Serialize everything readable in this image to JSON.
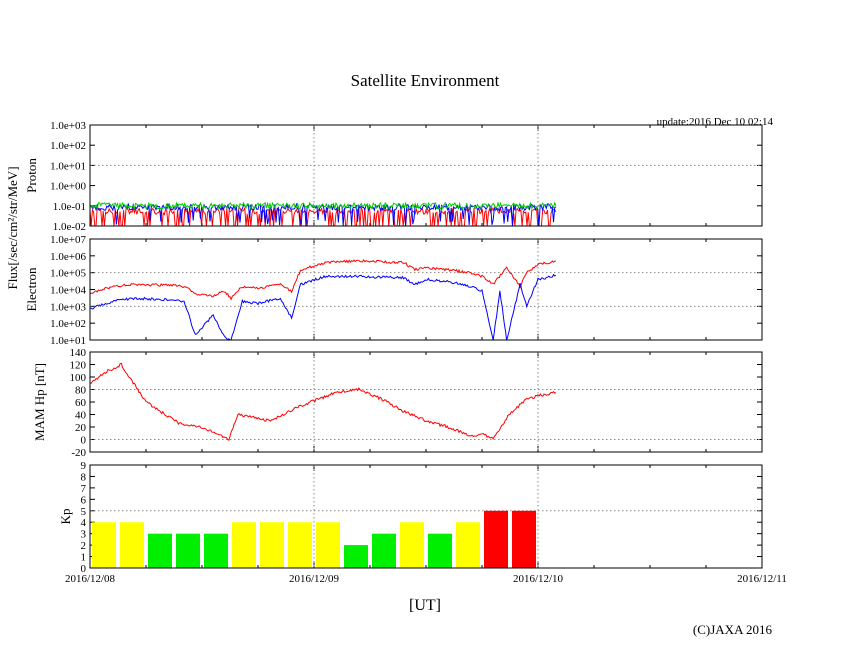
{
  "title": "Satellite Environment",
  "update": "update:2016 Dec 10 02:14",
  "copyright": "(C)JAXA 2016",
  "flux_label": "Flux[/sec/cm²/str/MeV]",
  "x_axis": {
    "label": "[UT]",
    "ticks": [
      "2016/12/08",
      "2016/12/09",
      "2016/12/10",
      "2016/12/11"
    ]
  },
  "chart_data": [
    {
      "type": "line",
      "ylabel": "Proton",
      "yscale": "log",
      "ylim": [
        0.01,
        1000
      ],
      "yticks": [
        "1.0e-02",
        "1.0e-01",
        "1.0e+00",
        "1.0e+01",
        "1.0e+02",
        "1.0e+03"
      ],
      "grid": "dotted, at day boundaries and 1.0e+01",
      "x_unit": "days since 2016/12/08 00:00 UT",
      "series": [
        {
          "color": "#ff0000",
          "x": [
            0,
            0.3,
            0.6,
            0.9,
            1.2,
            1.5,
            1.8,
            2.08
          ],
          "values": [
            0.06,
            0.05,
            0.06,
            0.05,
            0.06,
            0.05,
            0.06,
            0.05
          ]
        },
        {
          "color": "#0000ff",
          "x": [
            0,
            0.3,
            0.6,
            0.9,
            1.2,
            1.5,
            1.8,
            2.08
          ],
          "values": [
            0.08,
            0.09,
            0.08,
            0.09,
            0.08,
            0.09,
            0.08,
            0.09
          ]
        },
        {
          "color": "#00cc00",
          "x": [
            0,
            0.3,
            0.6,
            0.9,
            1.2,
            1.5,
            1.8,
            2.08
          ],
          "values": [
            0.1,
            0.1,
            0.1,
            0.1,
            0.1,
            0.1,
            0.1,
            0.1
          ]
        }
      ]
    },
    {
      "type": "line",
      "ylabel": "Electron",
      "yscale": "log",
      "ylim": [
        10,
        10000000
      ],
      "yticks": [
        "1.0e+01",
        "1.0e+02",
        "1.0e+03",
        "1.0e+04",
        "1.0e+05",
        "1.0e+06",
        "1.0e+07"
      ],
      "series": [
        {
          "color": "#ff0000",
          "x": [
            0,
            0.1,
            0.2,
            0.35,
            0.42,
            0.48,
            0.55,
            0.6,
            0.63,
            0.68,
            0.75,
            0.85,
            0.9,
            0.94,
            1.05,
            1.2,
            1.4,
            1.45,
            1.5,
            1.6,
            1.7,
            1.75,
            1.8,
            1.86,
            1.92,
            1.95,
            2.0,
            2.08
          ],
          "values": [
            6000,
            15000,
            20000,
            18000,
            15000,
            5000,
            4000,
            8000,
            3000,
            15000,
            12000,
            20000,
            8000,
            150000,
            400000,
            500000,
            400000,
            150000,
            200000,
            150000,
            100000,
            60000,
            20000,
            200000,
            15000,
            100000,
            300000,
            500000
          ]
        },
        {
          "color": "#0000ff",
          "x": [
            0,
            0.1,
            0.2,
            0.35,
            0.42,
            0.47,
            0.55,
            0.6,
            0.63,
            0.68,
            0.75,
            0.85,
            0.9,
            0.94,
            1.05,
            1.2,
            1.4,
            1.45,
            1.5,
            1.6,
            1.7,
            1.75,
            1.8,
            1.83,
            1.86,
            1.92,
            1.95,
            2.0,
            2.08
          ],
          "values": [
            700,
            2000,
            3000,
            2500,
            2000,
            20,
            300,
            15,
            10,
            2000,
            1500,
            3000,
            200,
            20000,
            60000,
            60000,
            50000,
            20000,
            40000,
            30000,
            15000,
            8000,
            10,
            8000,
            10,
            20000,
            1000,
            40000,
            70000
          ]
        }
      ]
    },
    {
      "type": "line",
      "ylabel": "MAM Hp [nT]",
      "ylim": [
        -20,
        140
      ],
      "yticks": [
        "-20",
        "0",
        "20",
        "40",
        "60",
        "80",
        "100",
        "120",
        "140"
      ],
      "series": [
        {
          "color": "#ff0000",
          "x": [
            0,
            0.08,
            0.14,
            0.25,
            0.4,
            0.5,
            0.62,
            0.66,
            0.8,
            0.95,
            1.1,
            1.2,
            1.3,
            1.4,
            1.5,
            1.6,
            1.7,
            1.75,
            1.8,
            1.87,
            1.95,
            2.0,
            2.08
          ],
          "values": [
            90,
            110,
            120,
            60,
            25,
            20,
            0,
            40,
            30,
            55,
            75,
            80,
            65,
            45,
            30,
            20,
            5,
            10,
            0,
            40,
            65,
            70,
            75
          ]
        }
      ]
    },
    {
      "type": "bar",
      "ylabel": "Kp",
      "ylim": [
        0,
        9
      ],
      "yticks": [
        "0",
        "1",
        "2",
        "3",
        "4",
        "5",
        "6",
        "7",
        "8",
        "9"
      ],
      "grid": "dotted at Kp 5 and day boundaries",
      "color_rule": {
        "green": "Kp <= 3",
        "yellow": "Kp = 4",
        "red": "Kp >= 5"
      },
      "colors": {
        "low": "#00ee00",
        "mid": "#ffff00",
        "high": "#ff0000"
      },
      "bins_per_day": 8,
      "values": [
        4,
        4,
        3,
        3,
        3,
        4,
        4,
        4,
        4,
        2,
        3,
        4,
        3,
        4,
        5,
        5
      ]
    }
  ]
}
